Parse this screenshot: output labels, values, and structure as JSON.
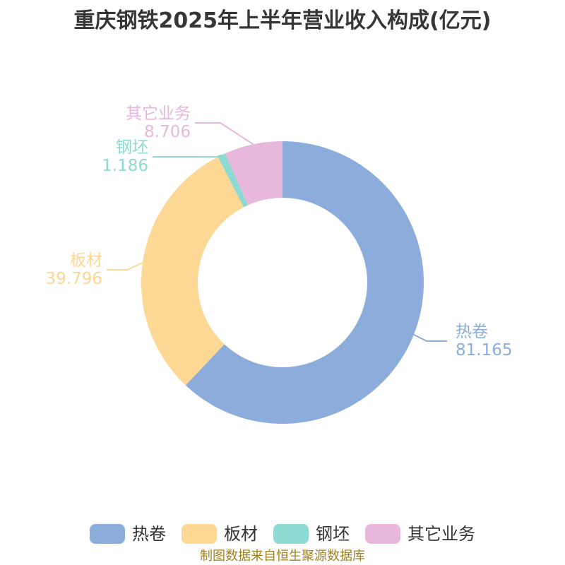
{
  "title": "重庆钢铁2025年上半年营业收入构成(亿元)",
  "footer": "制图数据来自恒生聚源数据库",
  "colors": {
    "background": "#ffffff",
    "title_text": "#363636",
    "legend_text": "#333333",
    "footer_text": "#A2801E"
  },
  "chart_data": {
    "type": "pie",
    "subtype": "donut",
    "title": "重庆钢铁2025年上半年营业收入构成(亿元)",
    "unit": "亿元",
    "total": 130.853,
    "start_angle_deg": 0,
    "direction": "clockwise",
    "inner_radius_ratio": 0.6,
    "legend_position": "bottom",
    "slices": [
      {
        "name": "热卷",
        "value": 81.165,
        "color": "#8CADDC"
      },
      {
        "name": "板材",
        "value": 39.796,
        "color": "#FDD794"
      },
      {
        "name": "钢坯",
        "value": 1.186,
        "color": "#8CDAD2"
      },
      {
        "name": "其它业务",
        "value": 8.706,
        "color": "#E8B7DC"
      }
    ]
  }
}
